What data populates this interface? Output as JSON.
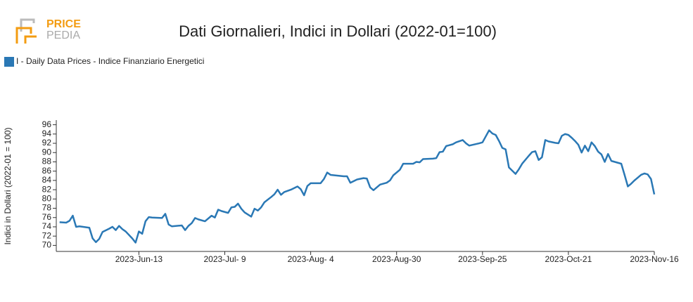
{
  "chart_data": {
    "type": "line",
    "brand": [
      "PRICE",
      "PEDIA"
    ],
    "title": "Dati Giornalieri, Indici in Dollari (2022-01=100)",
    "y_label": "Indici in Dollari (2022-01 = 100)",
    "legend_position": "top-left",
    "xlim": [
      "2023-05-19",
      "2023-11-16"
    ],
    "xticks": [
      {
        "value": "2023-06-13",
        "label": "2023-Jun-13"
      },
      {
        "value": "2023-07-09",
        "label": "2023-Jul- 9"
      },
      {
        "value": "2023-08-04",
        "label": "2023-Aug- 4"
      },
      {
        "value": "2023-08-30",
        "label": "2023-Aug-30"
      },
      {
        "value": "2023-09-25",
        "label": "2023-Sep-25"
      },
      {
        "value": "2023-10-21",
        "label": "2023-Oct-21"
      },
      {
        "value": "2023-11-16",
        "label": "2023-Nov-16"
      }
    ],
    "ylim": [
      69,
      97
    ],
    "yticks": [
      70,
      72,
      74,
      76,
      78,
      80,
      82,
      84,
      86,
      88,
      90,
      92,
      94,
      96
    ],
    "x": [
      "2023-05-20",
      "2023-05-22",
      "2023-05-23",
      "2023-05-24",
      "2023-05-25",
      "2023-05-26",
      "2023-05-29",
      "2023-05-30",
      "2023-05-31",
      "2023-06-01",
      "2023-06-02",
      "2023-06-04",
      "2023-06-05",
      "2023-06-06",
      "2023-06-07",
      "2023-06-08",
      "2023-06-09",
      "2023-06-11",
      "2023-06-12",
      "2023-06-13",
      "2023-06-14",
      "2023-06-15",
      "2023-06-16",
      "2023-06-17",
      "2023-06-20",
      "2023-06-21",
      "2023-06-22",
      "2023-06-23",
      "2023-06-26",
      "2023-06-27",
      "2023-06-28",
      "2023-06-29",
      "2023-06-30",
      "2023-07-01",
      "2023-07-03",
      "2023-07-05",
      "2023-07-06",
      "2023-07-07",
      "2023-07-08",
      "2023-07-10",
      "2023-07-11",
      "2023-07-12",
      "2023-07-13",
      "2023-07-14",
      "2023-07-15",
      "2023-07-17",
      "2023-07-18",
      "2023-07-19",
      "2023-07-20",
      "2023-07-21",
      "2023-07-23",
      "2023-07-24",
      "2023-07-25",
      "2023-07-26",
      "2023-07-27",
      "2023-07-29",
      "2023-07-31",
      "2023-08-01",
      "2023-08-02",
      "2023-08-03",
      "2023-08-04",
      "2023-08-07",
      "2023-08-08",
      "2023-08-09",
      "2023-08-10",
      "2023-08-14",
      "2023-08-15",
      "2023-08-16",
      "2023-08-18",
      "2023-08-20",
      "2023-08-21",
      "2023-08-22",
      "2023-08-23",
      "2023-08-25",
      "2023-08-27",
      "2023-08-28",
      "2023-08-29",
      "2023-08-31",
      "2023-09-01",
      "2023-09-04",
      "2023-09-05",
      "2023-09-06",
      "2023-09-07",
      "2023-09-10",
      "2023-09-11",
      "2023-09-12",
      "2023-09-13",
      "2023-09-14",
      "2023-09-16",
      "2023-09-17",
      "2023-09-19",
      "2023-09-20",
      "2023-09-21",
      "2023-09-24",
      "2023-09-25",
      "2023-09-27",
      "2023-09-28",
      "2023-09-29",
      "2023-09-30",
      "2023-10-01",
      "2023-10-02",
      "2023-10-03",
      "2023-10-05",
      "2023-10-06",
      "2023-10-07",
      "2023-10-09",
      "2023-10-10",
      "2023-10-11",
      "2023-10-12",
      "2023-10-13",
      "2023-10-14",
      "2023-10-15",
      "2023-10-17",
      "2023-10-18",
      "2023-10-19",
      "2023-10-20",
      "2023-10-21",
      "2023-10-22",
      "2023-10-23",
      "2023-10-24",
      "2023-10-25",
      "2023-10-26",
      "2023-10-27",
      "2023-10-28",
      "2023-10-29",
      "2023-10-30",
      "2023-10-31",
      "2023-11-01",
      "2023-11-02",
      "2023-11-03",
      "2023-11-06",
      "2023-11-07",
      "2023-11-08",
      "2023-11-09",
      "2023-11-10",
      "2023-11-11",
      "2023-11-12",
      "2023-11-13",
      "2023-11-14",
      "2023-11-15",
      "2023-11-16"
    ],
    "series": [
      {
        "name": "I - Daily Data Prices - Indice Finanziario Energetici",
        "color": "#2a78b5",
        "values": [
          75.0,
          74.9,
          75.3,
          76.4,
          74.0,
          74.1,
          73.8,
          71.5,
          70.7,
          71.4,
          72.9,
          73.6,
          74.0,
          73.3,
          74.2,
          73.5,
          73.0,
          71.5,
          70.6,
          73.0,
          72.5,
          75.2,
          76.1,
          76.0,
          75.9,
          76.8,
          74.5,
          74.1,
          74.3,
          73.3,
          74.2,
          74.8,
          75.9,
          75.6,
          75.2,
          76.4,
          76.0,
          77.7,
          77.4,
          77.0,
          78.2,
          78.3,
          79.0,
          77.9,
          77.1,
          76.2,
          77.9,
          77.5,
          78.2,
          79.3,
          80.4,
          81.0,
          82.0,
          80.9,
          81.5,
          82.0,
          82.7,
          82.1,
          80.8,
          82.8,
          83.4,
          83.4,
          84.3,
          85.7,
          85.2,
          84.9,
          84.9,
          83.5,
          84.2,
          84.5,
          84.4,
          82.5,
          81.9,
          83.1,
          83.5,
          84.0,
          85.1,
          86.3,
          87.6,
          87.6,
          88.0,
          87.9,
          88.6,
          88.7,
          88.8,
          90.1,
          90.2,
          91.4,
          91.8,
          92.2,
          92.7,
          92.0,
          91.5,
          92.0,
          92.2,
          94.8,
          94.1,
          93.8,
          92.5,
          91.0,
          90.7,
          86.8,
          85.4,
          86.4,
          87.6,
          89.3,
          90.1,
          90.3,
          88.4,
          89.0,
          92.7,
          92.4,
          92.1,
          92.0,
          93.6,
          94.0,
          93.8,
          93.2,
          92.5,
          91.7,
          90.0,
          91.5,
          90.3,
          92.2,
          91.4,
          90.2,
          89.6,
          88.0,
          89.7,
          88.2,
          87.6,
          85.2,
          82.7,
          83.3,
          84.0,
          84.6,
          85.2,
          85.5,
          85.3,
          84.3,
          81.0
        ]
      }
    ]
  }
}
